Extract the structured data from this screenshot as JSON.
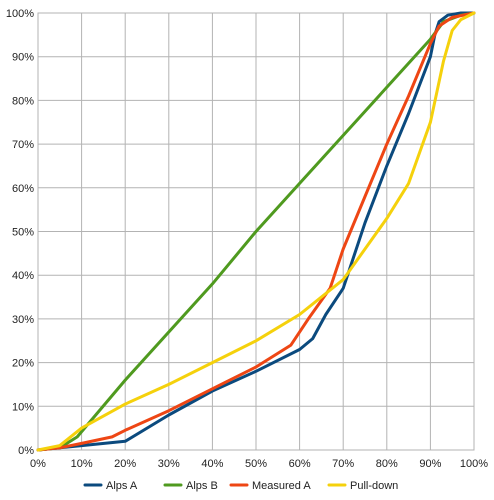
{
  "chart_data": {
    "type": "line",
    "title": "",
    "xlabel": "",
    "ylabel": "",
    "xlim": [
      0,
      100
    ],
    "ylim": [
      0,
      100
    ],
    "grid": true,
    "legend_position": "bottom",
    "x_ticks": [
      0,
      10,
      20,
      30,
      40,
      50,
      60,
      70,
      80,
      90,
      100
    ],
    "y_ticks": [
      0,
      10,
      20,
      30,
      40,
      50,
      60,
      70,
      80,
      90,
      100
    ],
    "x_tick_labels": [
      "0%",
      "10%",
      "20%",
      "30%",
      "40%",
      "50%",
      "60%",
      "70%",
      "80%",
      "90%",
      "100%"
    ],
    "y_tick_labels": [
      "0%",
      "10%",
      "20%",
      "30%",
      "40%",
      "50%",
      "60%",
      "70%",
      "80%",
      "90%",
      "100%"
    ],
    "series": [
      {
        "name": "Alps A",
        "color": "#0b4a7e",
        "points": [
          [
            0,
            0
          ],
          [
            5,
            0.5
          ],
          [
            10,
            1
          ],
          [
            20,
            2
          ],
          [
            30,
            8
          ],
          [
            40,
            13.5
          ],
          [
            50,
            18
          ],
          [
            60,
            23
          ],
          [
            63,
            25.5
          ],
          [
            66,
            31
          ],
          [
            70,
            37
          ],
          [
            75,
            52
          ],
          [
            80,
            65
          ],
          [
            85,
            77
          ],
          [
            90,
            90
          ],
          [
            91,
            95
          ],
          [
            92,
            98
          ],
          [
            94,
            99.5
          ],
          [
            97,
            100
          ],
          [
            100,
            100
          ]
        ]
      },
      {
        "name": "Alps B",
        "color": "#4f9a1f",
        "points": [
          [
            0,
            0
          ],
          [
            5,
            0.5
          ],
          [
            9,
            3
          ],
          [
            20,
            16
          ],
          [
            30,
            27
          ],
          [
            40,
            38
          ],
          [
            50,
            50
          ],
          [
            60,
            61
          ],
          [
            70,
            72
          ],
          [
            80,
            83
          ],
          [
            90,
            94
          ],
          [
            93,
            98
          ],
          [
            97,
            99.5
          ],
          [
            100,
            100
          ]
        ]
      },
      {
        "name": "Measured A",
        "color": "#ee4614",
        "points": [
          [
            0,
            0
          ],
          [
            5,
            0.5
          ],
          [
            10,
            1.5
          ],
          [
            17,
            3
          ],
          [
            20,
            4.5
          ],
          [
            30,
            9
          ],
          [
            40,
            14
          ],
          [
            50,
            19
          ],
          [
            58,
            24
          ],
          [
            62,
            30
          ],
          [
            67,
            37
          ],
          [
            70,
            46
          ],
          [
            75,
            58
          ],
          [
            80,
            70
          ],
          [
            85,
            81
          ],
          [
            90,
            93
          ],
          [
            92,
            97
          ],
          [
            95,
            99
          ],
          [
            100,
            100
          ]
        ]
      },
      {
        "name": "Pull-down",
        "color": "#f5d10c",
        "points": [
          [
            0,
            0
          ],
          [
            5,
            1
          ],
          [
            10,
            5
          ],
          [
            20,
            10.5
          ],
          [
            30,
            15
          ],
          [
            40,
            20
          ],
          [
            50,
            25
          ],
          [
            60,
            31
          ],
          [
            70,
            39
          ],
          [
            75,
            46
          ],
          [
            80,
            53
          ],
          [
            85,
            61
          ],
          [
            90,
            75
          ],
          [
            93,
            89
          ],
          [
            95,
            96
          ],
          [
            97,
            98.5
          ],
          [
            100,
            100
          ]
        ]
      }
    ]
  }
}
